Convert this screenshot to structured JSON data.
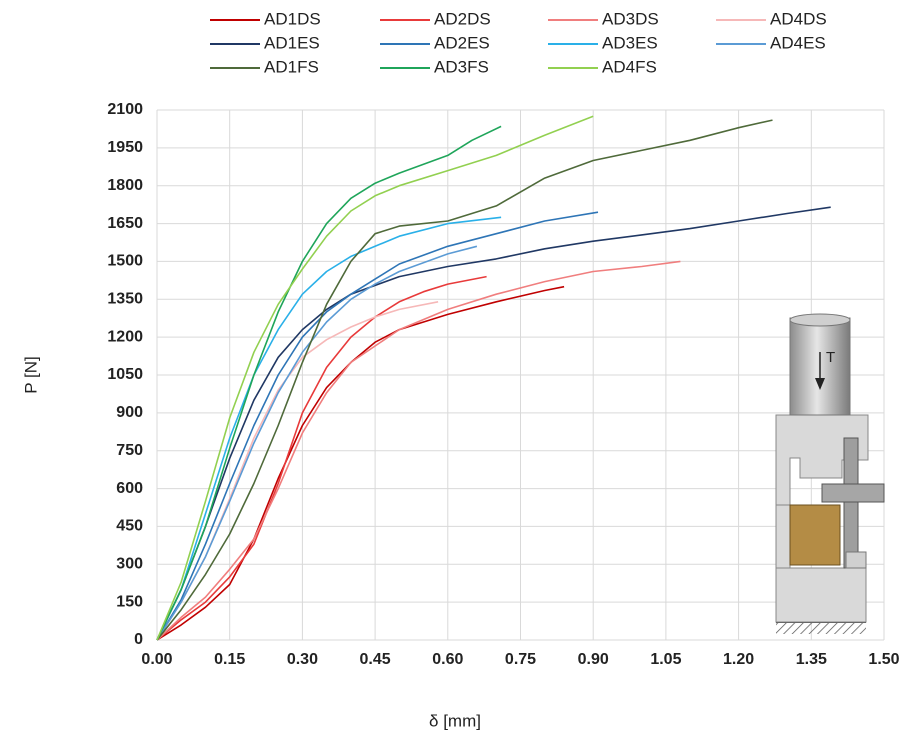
{
  "chart_data": {
    "type": "line",
    "x_label": "δ [mm]",
    "y_label": "P [N]",
    "annotation": "T",
    "xlim": [
      0,
      1.5
    ],
    "ylim": [
      0,
      2100
    ],
    "xticks": [
      {
        "value": 0,
        "label": "0.00"
      },
      0.15,
      {
        "value": 0.3,
        "label": "0.30"
      },
      0.45,
      {
        "value": 0.6,
        "label": "0.60"
      },
      0.75,
      {
        "value": 0.9,
        "label": "0.90"
      },
      1.05,
      {
        "value": 1.2,
        "label": "1.20"
      },
      1.35,
      {
        "value": 1.5,
        "label": "1.50"
      }
    ],
    "yticks": [
      0,
      150,
      300,
      450,
      600,
      750,
      900,
      1050,
      1200,
      1350,
      1500,
      1650,
      1800,
      1950,
      2100
    ],
    "grid": true,
    "legend_position": "top",
    "series": [
      {
        "name": "AD1DS",
        "color": "#c00000",
        "x": [
          0,
          0.05,
          0.1,
          0.15,
          0.2,
          0.25,
          0.3,
          0.35,
          0.4,
          0.45,
          0.5,
          0.6,
          0.7,
          0.8,
          0.84
        ],
        "values": [
          0,
          60,
          130,
          220,
          400,
          640,
          850,
          1000,
          1100,
          1180,
          1230,
          1290,
          1340,
          1385,
          1400
        ]
      },
      {
        "name": "AD2DS",
        "color": "#e83a3a",
        "x": [
          0,
          0.05,
          0.1,
          0.15,
          0.2,
          0.25,
          0.3,
          0.35,
          0.4,
          0.45,
          0.5,
          0.55,
          0.6,
          0.68
        ],
        "values": [
          0,
          80,
          150,
          250,
          380,
          620,
          900,
          1080,
          1200,
          1280,
          1340,
          1380,
          1410,
          1440
        ]
      },
      {
        "name": "AD3DS",
        "color": "#f07e7e",
        "x": [
          0,
          0.05,
          0.1,
          0.15,
          0.2,
          0.25,
          0.3,
          0.35,
          0.4,
          0.5,
          0.6,
          0.7,
          0.8,
          0.9,
          1.0,
          1.08
        ],
        "values": [
          0,
          90,
          170,
          280,
          400,
          600,
          820,
          980,
          1100,
          1230,
          1310,
          1370,
          1420,
          1460,
          1480,
          1500
        ]
      },
      {
        "name": "AD4DS",
        "color": "#f6b8b8",
        "x": [
          0,
          0.05,
          0.1,
          0.15,
          0.2,
          0.25,
          0.3,
          0.35,
          0.4,
          0.45,
          0.5,
          0.58
        ],
        "values": [
          0,
          150,
          330,
          560,
          800,
          990,
          1120,
          1190,
          1240,
          1280,
          1310,
          1340
        ]
      },
      {
        "name": "AD1ES",
        "color": "#203864",
        "x": [
          0,
          0.05,
          0.1,
          0.15,
          0.2,
          0.25,
          0.3,
          0.35,
          0.4,
          0.5,
          0.6,
          0.7,
          0.8,
          0.9,
          1.0,
          1.1,
          1.2,
          1.3,
          1.39
        ],
        "values": [
          0,
          200,
          450,
          720,
          950,
          1120,
          1230,
          1310,
          1370,
          1440,
          1480,
          1510,
          1550,
          1580,
          1605,
          1630,
          1660,
          1690,
          1715
        ]
      },
      {
        "name": "AD2ES",
        "color": "#2e75b6",
        "x": [
          0,
          0.05,
          0.1,
          0.15,
          0.2,
          0.25,
          0.3,
          0.35,
          0.4,
          0.45,
          0.5,
          0.6,
          0.7,
          0.8,
          0.91
        ],
        "values": [
          0,
          160,
          380,
          620,
          850,
          1050,
          1200,
          1300,
          1370,
          1430,
          1490,
          1560,
          1610,
          1660,
          1695
        ]
      },
      {
        "name": "AD3ES",
        "color": "#2ab0e8",
        "x": [
          0,
          0.05,
          0.1,
          0.15,
          0.2,
          0.25,
          0.3,
          0.35,
          0.4,
          0.45,
          0.5,
          0.6,
          0.71
        ],
        "values": [
          0,
          200,
          500,
          800,
          1050,
          1230,
          1370,
          1460,
          1520,
          1560,
          1600,
          1650,
          1675
        ]
      },
      {
        "name": "AD4ES",
        "color": "#5b9bd5",
        "x": [
          0,
          0.05,
          0.1,
          0.15,
          0.2,
          0.25,
          0.3,
          0.35,
          0.4,
          0.45,
          0.5,
          0.6,
          0.66
        ],
        "values": [
          0,
          150,
          330,
          550,
          780,
          980,
          1140,
          1260,
          1350,
          1410,
          1460,
          1530,
          1560
        ]
      },
      {
        "name": "AD1FS",
        "color": "#4f6a3a",
        "x": [
          0,
          0.05,
          0.1,
          0.15,
          0.2,
          0.25,
          0.3,
          0.35,
          0.4,
          0.45,
          0.5,
          0.6,
          0.7,
          0.8,
          0.9,
          1.0,
          1.1,
          1.2,
          1.27
        ],
        "values": [
          0,
          120,
          260,
          420,
          620,
          850,
          1100,
          1330,
          1500,
          1610,
          1640,
          1660,
          1720,
          1830,
          1900,
          1940,
          1980,
          2030,
          2060
        ]
      },
      {
        "name": "AD3FS",
        "color": "#1fa55a",
        "x": [
          0,
          0.05,
          0.1,
          0.15,
          0.2,
          0.25,
          0.3,
          0.35,
          0.4,
          0.45,
          0.5,
          0.6,
          0.65,
          0.71
        ],
        "values": [
          0,
          200,
          450,
          760,
          1050,
          1300,
          1500,
          1650,
          1750,
          1810,
          1850,
          1920,
          1980,
          2035
        ]
      },
      {
        "name": "AD4FS",
        "color": "#92d050",
        "x": [
          0,
          0.05,
          0.1,
          0.15,
          0.2,
          0.25,
          0.3,
          0.35,
          0.4,
          0.45,
          0.5,
          0.6,
          0.7,
          0.8,
          0.9
        ],
        "values": [
          0,
          230,
          550,
          880,
          1140,
          1330,
          1470,
          1600,
          1700,
          1760,
          1800,
          1860,
          1920,
          2000,
          2075
        ]
      }
    ]
  }
}
